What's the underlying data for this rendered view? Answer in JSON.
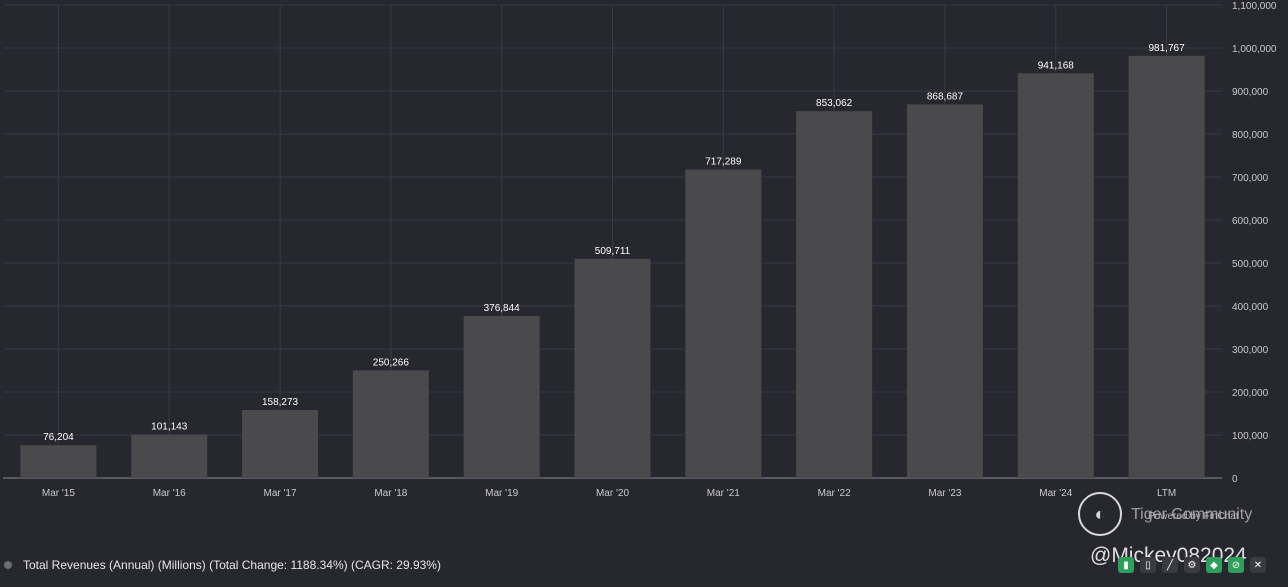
{
  "chart_data": {
    "type": "bar",
    "categories": [
      "Mar '15",
      "Mar '16",
      "Mar '17",
      "Mar '18",
      "Mar '19",
      "Mar '20",
      "Mar '21",
      "Mar '22",
      "Mar '23",
      "Mar '24",
      "LTM"
    ],
    "values": [
      76204,
      101143,
      158273,
      250266,
      376844,
      509711,
      717289,
      853062,
      868687,
      941168,
      981767
    ],
    "value_labels": [
      "76,204",
      "101,143",
      "158,273",
      "250,266",
      "376,844",
      "509,711",
      "717,289",
      "853,062",
      "868,687",
      "941,168",
      "981,767"
    ],
    "ylim": [
      0,
      1100000
    ],
    "yticks": [
      0,
      100000,
      200000,
      300000,
      400000,
      500000,
      600000,
      700000,
      800000,
      900000,
      1000000,
      1100000
    ],
    "ytick_labels": [
      "0",
      "100,000",
      "200,000",
      "300,000",
      "400,000",
      "500,000",
      "600,000",
      "700,000",
      "800,000",
      "900,000",
      "1,000,000",
      "1,100,000"
    ],
    "y_axis_side": "right",
    "grid": true,
    "legend_position": "bottom-left",
    "bar_color": "#4a4a4c",
    "background_color": "#27272f",
    "grid_color": "#3a3a44"
  },
  "legend": {
    "label": "Total Revenues (Annual) (Millions) (Total Change: 1188.34%) (CAGR: 29.93%)"
  },
  "branding": {
    "powered_by": "Powered by FinChat",
    "watermark_brand": "Tiger Community",
    "watermark_handle": "@Mickey082024"
  },
  "toolbar": {
    "icons": [
      "bar-chart-icon",
      "bar-chart-alt-icon",
      "line-chart-icon",
      "settings-icon",
      "tag-icon",
      "hide-icon",
      "close-icon"
    ]
  }
}
